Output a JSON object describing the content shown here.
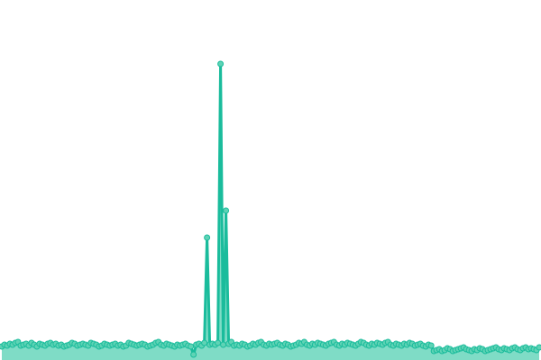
{
  "chart_data": {
    "type": "area",
    "line_color": "#1abc9c",
    "fill_color": "#7fdcc6",
    "marker_color": "#5fd3b5",
    "ylim": [
      0,
      330
    ],
    "values": [
      15,
      17,
      16,
      18,
      17,
      19,
      20,
      16,
      17,
      18,
      16,
      19,
      17,
      15,
      18,
      17,
      16,
      18,
      19,
      17,
      18,
      16,
      17,
      15,
      16,
      17,
      19,
      18,
      16,
      17,
      18,
      17,
      16,
      19,
      18,
      17,
      15,
      16,
      18,
      17,
      16,
      17,
      18,
      16,
      17,
      15,
      16,
      19,
      18,
      17,
      16,
      17,
      18,
      17,
      15,
      16,
      17,
      19,
      20,
      17,
      16,
      18,
      17,
      16,
      15,
      17,
      16,
      17,
      18,
      16,
      15,
      6,
      17,
      18,
      16,
      19,
      136,
      17,
      18,
      17,
      19,
      329,
      17,
      166,
      18,
      20,
      16,
      17,
      16,
      18,
      17,
      15,
      16,
      18,
      17,
      19,
      20,
      17,
      16,
      18,
      17,
      18,
      19,
      17,
      16,
      18,
      17,
      15,
      16,
      17,
      19,
      18,
      20,
      17,
      16,
      18,
      17,
      19,
      18,
      17,
      16,
      18,
      19,
      20,
      17,
      16,
      18,
      17,
      19,
      18,
      17,
      16,
      18,
      20,
      19,
      17,
      16,
      18,
      17,
      19,
      18,
      17,
      19,
      20,
      17,
      16,
      18,
      17,
      16,
      18,
      17,
      19,
      18,
      16,
      17,
      18,
      16,
      15,
      17,
      16,
      10,
      11,
      12,
      10,
      11,
      13,
      12,
      10,
      11,
      12,
      13,
      14,
      12,
      11,
      10,
      12,
      11,
      13,
      12,
      10,
      11,
      12,
      13,
      14,
      12,
      11,
      13,
      12,
      11,
      13,
      14,
      12,
      11,
      13,
      14,
      12,
      13,
      12,
      11,
      14
    ]
  }
}
